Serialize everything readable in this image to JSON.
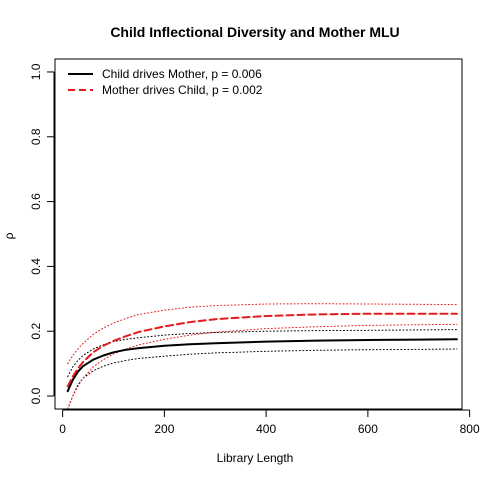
{
  "chart_data": {
    "type": "line",
    "title": "Child Inflectional Diversity and Mother MLU",
    "xlabel": "Library Length",
    "ylabel": "ρ",
    "xlim": [
      -15,
      785
    ],
    "ylim": [
      -0.04,
      1.04
    ],
    "x_ticks": [
      0,
      200,
      400,
      600,
      800
    ],
    "x_tick_labels": [
      "0",
      "200",
      "400",
      "600",
      "800"
    ],
    "y_ticks": [
      0.0,
      0.2,
      0.4,
      0.6,
      0.8,
      1.0
    ],
    "y_tick_labels": [
      "0.0",
      "0.2",
      "0.4",
      "0.6",
      "0.8",
      "1.0"
    ],
    "grid": false,
    "legend_position": "top-left",
    "legend": [
      {
        "label": "Child drives Mother, p = 0.006",
        "color": "#000000",
        "dash": "solid"
      },
      {
        "label": "Mother drives Child, p = 0.002",
        "color": "#e41a1c",
        "dash": "dashed"
      }
    ],
    "x": [
      10,
      20,
      30,
      40,
      60,
      80,
      100,
      125,
      150,
      200,
      250,
      300,
      400,
      500,
      600,
      700,
      775
    ],
    "series": [
      {
        "name": "Child drives Mother, p = 0.006",
        "color": "#000000",
        "style": "solid",
        "values": [
          0.015,
          0.05,
          0.075,
          0.092,
          0.112,
          0.125,
          0.135,
          0.143,
          0.148,
          0.155,
          0.16,
          0.163,
          0.168,
          0.171,
          0.173,
          0.174,
          0.175
        ]
      },
      {
        "name": "Child drives Mother upper band",
        "color": "#000000",
        "style": "dotted",
        "values": [
          0.06,
          0.09,
          0.11,
          0.125,
          0.145,
          0.158,
          0.168,
          0.175,
          0.18,
          0.188,
          0.193,
          0.196,
          0.2,
          0.202,
          0.203,
          0.204,
          0.205
        ]
      },
      {
        "name": "Child drives Mother lower band",
        "color": "#000000",
        "style": "dotted",
        "values": [
          -0.04,
          0.0,
          0.035,
          0.055,
          0.078,
          0.092,
          0.102,
          0.11,
          0.116,
          0.123,
          0.129,
          0.133,
          0.138,
          0.141,
          0.143,
          0.144,
          0.145
        ]
      },
      {
        "name": "Mother drives Child, p = 0.002",
        "color": "#e41a1c",
        "style": "dashed",
        "values": [
          0.03,
          0.06,
          0.085,
          0.105,
          0.135,
          0.155,
          0.17,
          0.185,
          0.198,
          0.215,
          0.228,
          0.237,
          0.247,
          0.252,
          0.254,
          0.254,
          0.254
        ]
      },
      {
        "name": "Mother drives Child upper band",
        "color": "#e41a1c",
        "style": "dotted",
        "values": [
          0.1,
          0.125,
          0.145,
          0.162,
          0.19,
          0.21,
          0.225,
          0.24,
          0.252,
          0.265,
          0.274,
          0.279,
          0.284,
          0.285,
          0.284,
          0.283,
          0.282
        ]
      },
      {
        "name": "Mother drives Child lower band",
        "color": "#e41a1c",
        "style": "dotted",
        "values": [
          -0.04,
          0.0,
          0.03,
          0.055,
          0.09,
          0.112,
          0.13,
          0.145,
          0.158,
          0.175,
          0.188,
          0.197,
          0.208,
          0.214,
          0.218,
          0.22,
          0.221
        ]
      }
    ]
  }
}
